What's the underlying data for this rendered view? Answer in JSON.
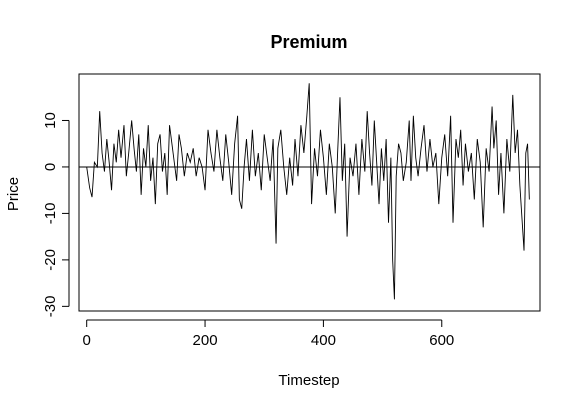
{
  "chart_data": {
    "type": "line",
    "title": "Premium",
    "xlabel": "Timestep",
    "ylabel": "Price",
    "xlim": [
      -13,
      766
    ],
    "ylim": [
      -31,
      20
    ],
    "xticks": [
      0,
      200,
      400,
      600
    ],
    "yticks": [
      -30,
      -20,
      -10,
      0,
      10
    ],
    "hline": 0,
    "grid": false,
    "legend": "none",
    "line_color": "#000000",
    "n_points": 750,
    "points": [
      [
        0,
        0
      ],
      [
        5,
        -4.5
      ],
      [
        9,
        -6.5
      ],
      [
        13,
        1
      ],
      [
        18,
        0
      ],
      [
        22,
        12
      ],
      [
        26,
        3
      ],
      [
        30,
        -1
      ],
      [
        34,
        6
      ],
      [
        38,
        1
      ],
      [
        42,
        -5
      ],
      [
        46,
        5
      ],
      [
        50,
        1
      ],
      [
        54,
        8
      ],
      [
        58,
        2
      ],
      [
        63,
        9
      ],
      [
        67,
        -2
      ],
      [
        71,
        3
      ],
      [
        76,
        10
      ],
      [
        80,
        4
      ],
      [
        84,
        -1
      ],
      [
        88,
        7
      ],
      [
        92,
        -6
      ],
      [
        96,
        4
      ],
      [
        100,
        0
      ],
      [
        104,
        9
      ],
      [
        108,
        -3
      ],
      [
        112,
        2
      ],
      [
        116,
        -8
      ],
      [
        120,
        5
      ],
      [
        124,
        7
      ],
      [
        128,
        -1
      ],
      [
        132,
        3
      ],
      [
        136,
        -6
      ],
      [
        140,
        9
      ],
      [
        144,
        5
      ],
      [
        148,
        1
      ],
      [
        152,
        -3
      ],
      [
        156,
        7
      ],
      [
        160,
        4
      ],
      [
        165,
        -2
      ],
      [
        170,
        3
      ],
      [
        175,
        1
      ],
      [
        180,
        4
      ],
      [
        185,
        -2
      ],
      [
        190,
        2
      ],
      [
        195,
        0
      ],
      [
        200,
        -5
      ],
      [
        205,
        8
      ],
      [
        210,
        3
      ],
      [
        215,
        -1
      ],
      [
        220,
        8
      ],
      [
        225,
        2
      ],
      [
        230,
        -3
      ],
      [
        235,
        7
      ],
      [
        240,
        1
      ],
      [
        245,
        -6
      ],
      [
        250,
        5
      ],
      [
        255,
        11
      ],
      [
        258,
        -7
      ],
      [
        262,
        -9
      ],
      [
        266,
        0
      ],
      [
        270,
        6
      ],
      [
        275,
        -3
      ],
      [
        280,
        8
      ],
      [
        285,
        -2
      ],
      [
        290,
        3
      ],
      [
        295,
        -5
      ],
      [
        300,
        7
      ],
      [
        305,
        2
      ],
      [
        310,
        -3
      ],
      [
        315,
        6
      ],
      [
        320,
        -16.5
      ],
      [
        323,
        4
      ],
      [
        328,
        8
      ],
      [
        333,
        0
      ],
      [
        338,
        -6
      ],
      [
        343,
        2
      ],
      [
        348,
        -4
      ],
      [
        352,
        6
      ],
      [
        357,
        -2
      ],
      [
        362,
        9
      ],
      [
        367,
        3
      ],
      [
        372,
        11
      ],
      [
        376,
        18
      ],
      [
        380,
        -8
      ],
      [
        385,
        4
      ],
      [
        390,
        -2
      ],
      [
        395,
        8
      ],
      [
        400,
        2
      ],
      [
        405,
        -6
      ],
      [
        410,
        5
      ],
      [
        415,
        0
      ],
      [
        420,
        -10
      ],
      [
        424,
        3
      ],
      [
        428,
        15
      ],
      [
        432,
        -3
      ],
      [
        436,
        5
      ],
      [
        440,
        -15
      ],
      [
        445,
        2
      ],
      [
        450,
        -2
      ],
      [
        455,
        5
      ],
      [
        460,
        -6
      ],
      [
        465,
        6
      ],
      [
        470,
        -1
      ],
      [
        474,
        12
      ],
      [
        478,
        3
      ],
      [
        482,
        -4
      ],
      [
        486,
        10
      ],
      [
        490,
        1
      ],
      [
        494,
        -8
      ],
      [
        498,
        4
      ],
      [
        502,
        -3
      ],
      [
        506,
        6
      ],
      [
        510,
        -12
      ],
      [
        514,
        2
      ],
      [
        517,
        -20
      ],
      [
        520,
        -28.5
      ],
      [
        523,
        -2
      ],
      [
        527,
        5
      ],
      [
        531,
        3
      ],
      [
        535,
        -3
      ],
      [
        540,
        1
      ],
      [
        545,
        10
      ],
      [
        548,
        -3
      ],
      [
        552,
        11
      ],
      [
        556,
        2
      ],
      [
        560,
        -2
      ],
      [
        565,
        4
      ],
      [
        570,
        9
      ],
      [
        575,
        -1
      ],
      [
        580,
        6
      ],
      [
        585,
        0
      ],
      [
        590,
        3
      ],
      [
        595,
        -8
      ],
      [
        600,
        2
      ],
      [
        605,
        7
      ],
      [
        610,
        -2
      ],
      [
        615,
        11
      ],
      [
        619,
        -12
      ],
      [
        624,
        6
      ],
      [
        628,
        2
      ],
      [
        632,
        8
      ],
      [
        636,
        -4
      ],
      [
        640,
        5
      ],
      [
        645,
        -1
      ],
      [
        650,
        3
      ],
      [
        655,
        -7
      ],
      [
        660,
        6
      ],
      [
        665,
        1
      ],
      [
        670,
        -13
      ],
      [
        675,
        4
      ],
      [
        680,
        -1
      ],
      [
        685,
        13
      ],
      [
        688,
        4
      ],
      [
        692,
        10
      ],
      [
        696,
        -6
      ],
      [
        700,
        3
      ],
      [
        705,
        -10
      ],
      [
        710,
        6
      ],
      [
        715,
        -1
      ],
      [
        720,
        15.5
      ],
      [
        724,
        3
      ],
      [
        728,
        8
      ],
      [
        732,
        -4
      ],
      [
        736,
        -12
      ],
      [
        739,
        -18
      ],
      [
        742,
        3
      ],
      [
        745,
        5
      ],
      [
        748,
        -7
      ]
    ]
  }
}
